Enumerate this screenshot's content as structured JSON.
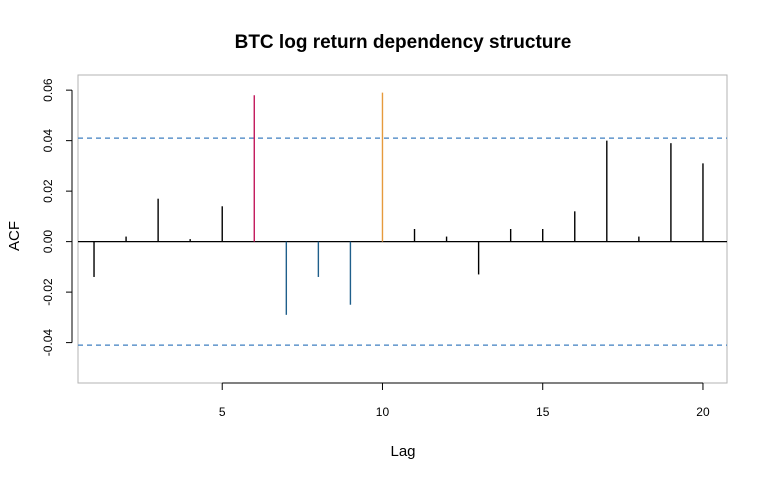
{
  "chart_data": {
    "type": "bar",
    "title": "BTC log return dependency structure",
    "xlabel": "Lag",
    "ylabel": "ACF",
    "xlim": [
      0.5,
      20.75
    ],
    "ylim": [
      -0.056,
      0.066
    ],
    "x_ticks": [
      "5",
      "10",
      "15",
      "20"
    ],
    "y_ticks": [
      "-0.04",
      "-0.02",
      "0.00",
      "0.02",
      "0.04",
      "0.06"
    ],
    "confidence_bounds": [
      0.041,
      -0.041
    ],
    "bound_style": "dashed",
    "bound_color": "#3E7FC1",
    "lags": [
      1,
      2,
      3,
      4,
      5,
      6,
      7,
      8,
      9,
      10,
      11,
      12,
      13,
      14,
      15,
      16,
      17,
      18,
      19,
      20
    ],
    "values": [
      -0.014,
      0.002,
      0.017,
      0.001,
      0.014,
      0.058,
      -0.029,
      -0.014,
      -0.025,
      0.059,
      0.005,
      0.002,
      -0.013,
      0.005,
      0.005,
      0.012,
      0.04,
      0.002,
      0.039,
      0.031
    ],
    "colors": [
      "#000000",
      "#000000",
      "#000000",
      "#000000",
      "#000000",
      "#C2185B",
      "#1F5F8B",
      "#1F5F8B",
      "#1F5F8B",
      "#E69A3C",
      "#000000",
      "#000000",
      "#000000",
      "#000000",
      "#000000",
      "#000000",
      "#000000",
      "#000000",
      "#000000",
      "#000000"
    ]
  }
}
